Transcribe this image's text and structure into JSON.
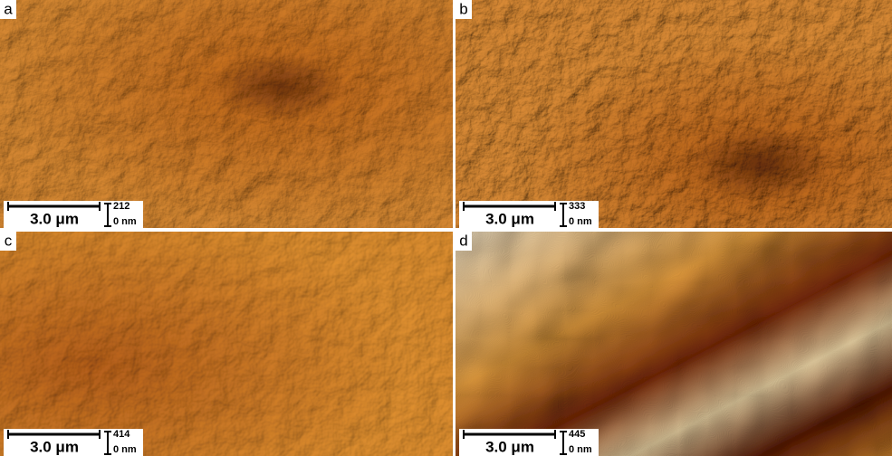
{
  "panels": [
    {
      "label": "a",
      "scale": "3.0 μm",
      "zmax": "212",
      "zmin": "0 nm"
    },
    {
      "label": "b",
      "scale": "3.0 μm",
      "zmax": "333",
      "zmin": "0 nm"
    },
    {
      "label": "c",
      "scale": "3.0 μm",
      "zmax": "414",
      "zmin": "0 nm"
    },
    {
      "label": "d",
      "scale": "3.0 μm",
      "zmax": "445",
      "zmin": "0 nm"
    }
  ]
}
